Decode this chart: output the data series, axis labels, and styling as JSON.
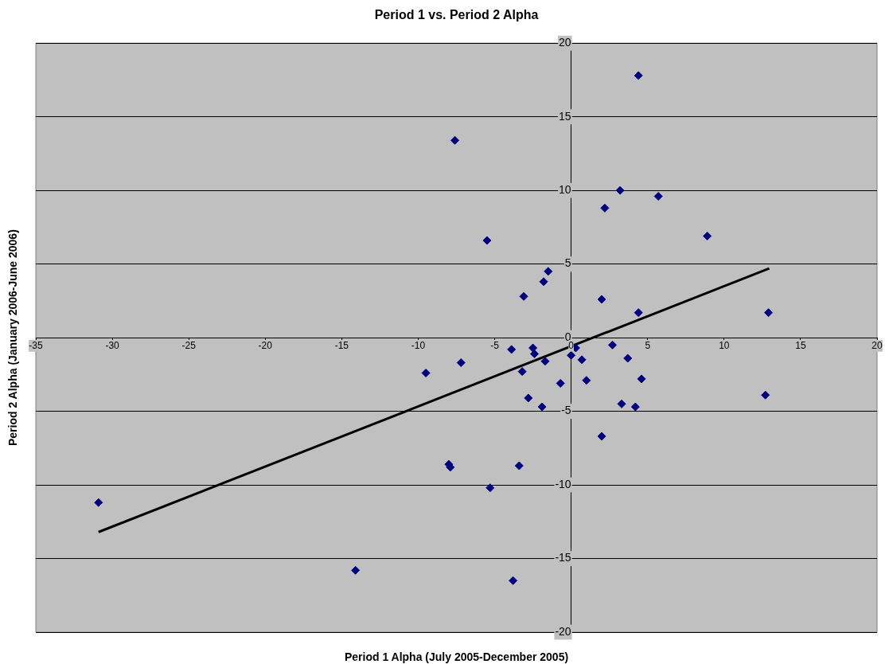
{
  "chart_data": {
    "type": "scatter",
    "title": "Period 1 vs. Period 2 Alpha",
    "xlabel": "Period 1 Alpha (July 2005-December 2005)",
    "ylabel": "Period 2 Alpha (January 2006-June 2006)",
    "xlim": [
      -35,
      20
    ],
    "xticks": [
      -35,
      -30,
      -25,
      -20,
      -15,
      -10,
      -5,
      0,
      5,
      10,
      15,
      20
    ],
    "ylim": [
      -20,
      20
    ],
    "yticks": [
      -20,
      -15,
      -10,
      -5,
      0,
      5,
      10,
      15,
      20
    ],
    "grid": "y",
    "legend": false,
    "marker": "diamond",
    "series": [
      {
        "type": "scatter",
        "color": "#000080",
        "x": [
          -30.9,
          -14.1,
          -9.5,
          -8.0,
          -7.9,
          -7.6,
          -7.2,
          -5.5,
          -5.3,
          -3.9,
          -3.8,
          -3.4,
          -3.2,
          -3.1,
          -2.8,
          -2.5,
          -2.4,
          -1.9,
          -1.8,
          -1.7,
          -1.5,
          -0.7,
          0.0,
          0.3,
          0.7,
          1.0,
          2.0,
          2.0,
          2.2,
          2.7,
          3.2,
          3.3,
          3.7,
          4.2,
          4.4,
          4.4,
          4.6,
          5.7,
          8.9,
          12.7,
          12.9
        ],
        "values": [
          -11.2,
          -15.8,
          -2.4,
          -8.6,
          -8.8,
          13.4,
          -1.7,
          6.6,
          -10.2,
          -0.8,
          -16.5,
          -8.7,
          -2.3,
          2.8,
          -4.1,
          -0.7,
          -1.1,
          -4.7,
          3.8,
          -1.6,
          4.5,
          -3.1,
          -1.2,
          -0.7,
          -1.5,
          -2.9,
          2.6,
          -6.7,
          8.8,
          -0.5,
          10.0,
          -4.5,
          -1.4,
          -4.7,
          1.7,
          17.8,
          -2.8,
          9.6,
          6.9,
          -3.9,
          1.7
        ]
      },
      {
        "type": "line",
        "color": "#000000",
        "marker": "none",
        "x": [
          -30.9,
          12.95
        ],
        "values": [
          -13.2,
          4.7
        ]
      }
    ]
  }
}
